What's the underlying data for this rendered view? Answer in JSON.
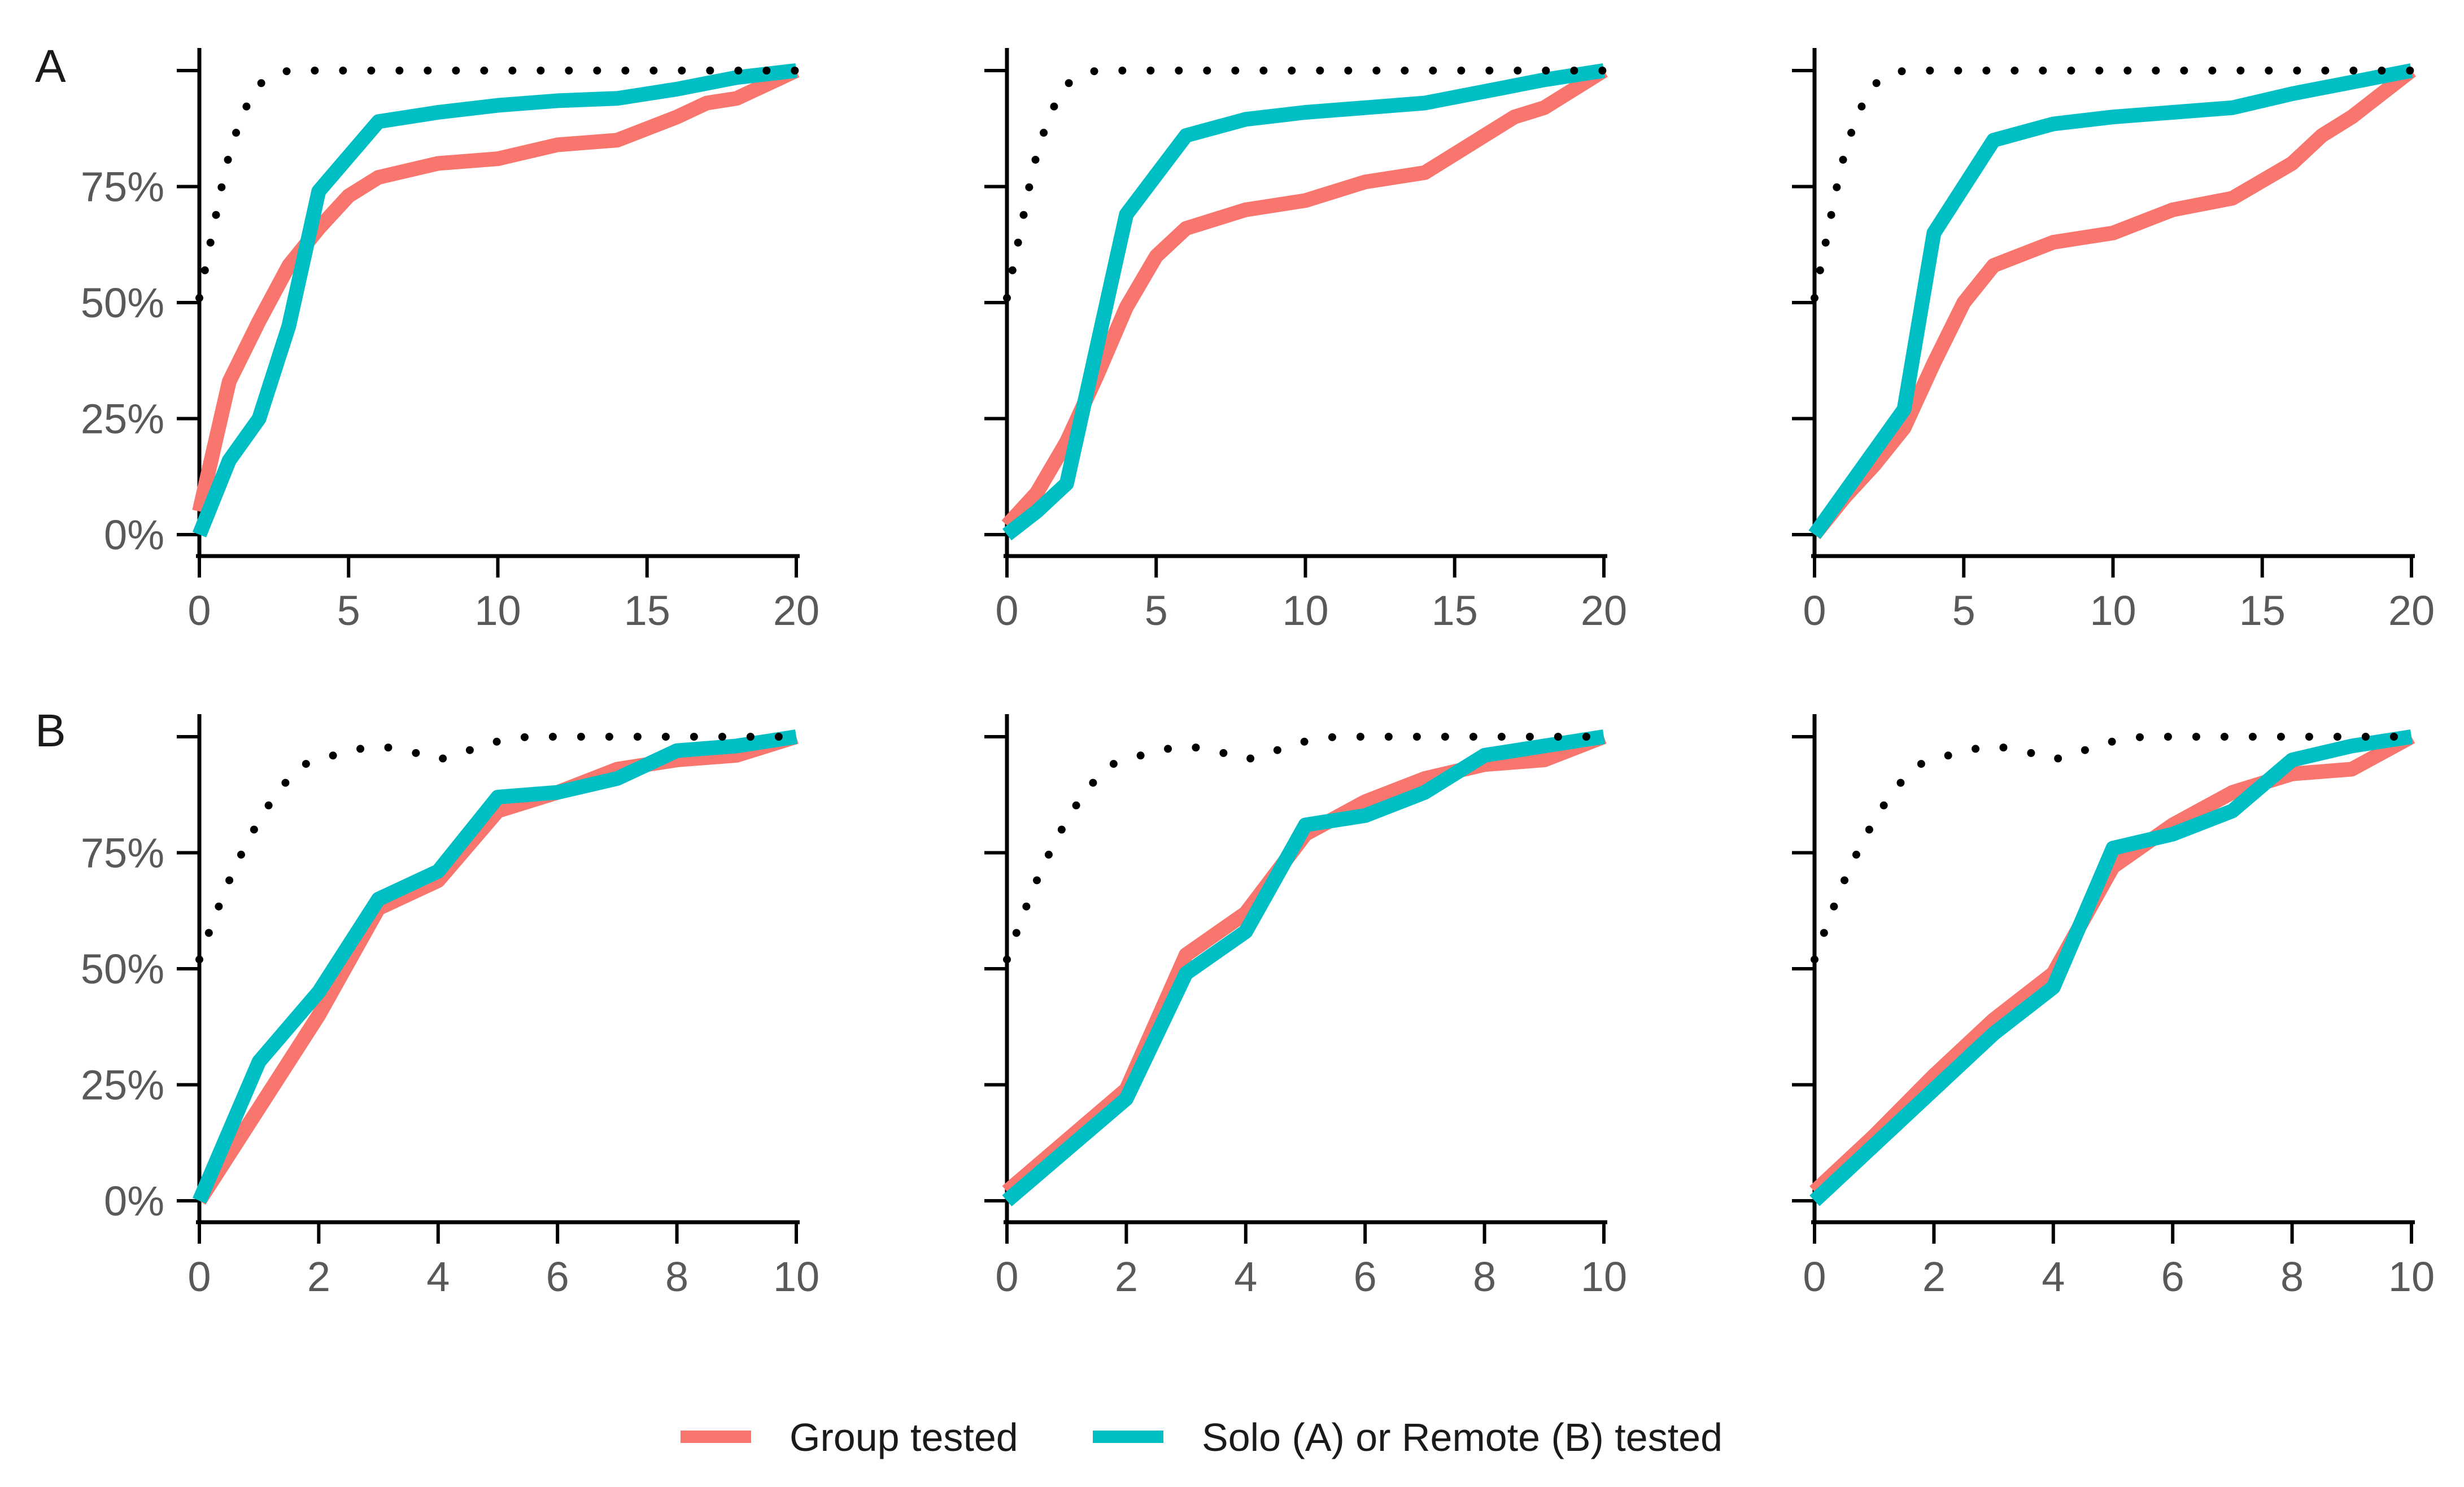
{
  "legend": {
    "items": [
      {
        "label": "Group tested",
        "color": "#F8766D"
      },
      {
        "label": "Solo (A) or Remote (B) tested",
        "color": "#00BFC4"
      }
    ]
  },
  "row_labels": [
    "A",
    "B"
  ],
  "reference_line_color": "#000000",
  "chart_data": [
    {
      "type": "line",
      "row": "A",
      "col": 1,
      "xlim": [
        0,
        20
      ],
      "ylim": [
        0,
        1
      ],
      "xticks": [
        0,
        5,
        10,
        15,
        20
      ],
      "xtick_labels": [
        "0",
        "5",
        "10",
        "15",
        "20"
      ],
      "yticks": [
        0,
        0.25,
        0.5,
        0.75,
        1.0
      ],
      "ytick_labels": [
        "0%",
        "25%",
        "50%",
        "75%",
        ""
      ],
      "series": [
        {
          "name": "Group tested",
          "color": "#F8766D",
          "x": [
            0,
            1,
            2,
            3,
            4,
            5,
            6,
            8,
            10,
            12,
            14,
            16,
            17,
            18,
            20
          ],
          "y": [
            0.05,
            0.33,
            0.46,
            0.58,
            0.66,
            0.73,
            0.77,
            0.8,
            0.81,
            0.84,
            0.85,
            0.9,
            0.93,
            0.94,
            1.0
          ]
        },
        {
          "name": "Solo (A) or Remote (B) tested",
          "color": "#00BFC4",
          "x": [
            0,
            1,
            2,
            3,
            4,
            6,
            8,
            10,
            12,
            14,
            16,
            18,
            20
          ],
          "y": [
            0.0,
            0.16,
            0.25,
            0.45,
            0.74,
            0.89,
            0.91,
            0.925,
            0.935,
            0.94,
            0.96,
            0.985,
            1.0
          ]
        },
        {
          "name": "reference",
          "style": "dotted",
          "color": "#000000",
          "x": [
            0,
            0.25,
            0.5,
            0.75,
            1,
            1.25,
            1.5,
            1.75,
            2,
            2.5,
            3,
            4,
            5,
            6,
            7,
            8,
            9,
            10,
            11,
            12,
            13,
            14,
            15,
            16,
            17,
            18,
            19,
            20
          ],
          "y": [
            0.51,
            0.59,
            0.67,
            0.75,
            0.82,
            0.87,
            0.91,
            0.95,
            0.97,
            0.99,
            1.0,
            1.0,
            1.0,
            1.0,
            1.0,
            1.0,
            1.0,
            1.0,
            1.0,
            1.0,
            1.0,
            1.0,
            1.0,
            1.0,
            1.0,
            1.0,
            1.0,
            1.0
          ]
        }
      ]
    },
    {
      "type": "line",
      "row": "A",
      "col": 2,
      "xlim": [
        0,
        20
      ],
      "ylim": [
        0,
        1
      ],
      "xticks": [
        0,
        5,
        10,
        15,
        20
      ],
      "xtick_labels": [
        "0",
        "5",
        "10",
        "15",
        "20"
      ],
      "yticks": [
        0,
        0.25,
        0.5,
        0.75,
        1.0
      ],
      "ytick_labels": [
        "",
        "",
        "",
        "",
        ""
      ],
      "series": [
        {
          "name": "Group tested",
          "color": "#F8766D",
          "x": [
            0,
            1,
            2,
            3,
            4,
            5,
            6,
            8,
            10,
            12,
            14,
            16,
            17,
            18,
            20
          ],
          "y": [
            0.02,
            0.09,
            0.2,
            0.34,
            0.49,
            0.6,
            0.66,
            0.7,
            0.72,
            0.76,
            0.78,
            0.86,
            0.9,
            0.92,
            1.0
          ]
        },
        {
          "name": "Solo (A) or Remote (B) tested",
          "color": "#00BFC4",
          "x": [
            0,
            1,
            2,
            3,
            4,
            6,
            8,
            10,
            12,
            14,
            16,
            18,
            20
          ],
          "y": [
            0.0,
            0.05,
            0.11,
            0.4,
            0.69,
            0.86,
            0.895,
            0.91,
            0.92,
            0.93,
            0.955,
            0.98,
            1.0
          ]
        },
        {
          "name": "reference",
          "style": "dotted",
          "color": "#000000",
          "x": [
            0,
            0.25,
            0.5,
            0.75,
            1,
            1.25,
            1.5,
            1.75,
            2,
            2.5,
            3,
            4,
            5,
            6,
            7,
            8,
            9,
            10,
            11,
            12,
            13,
            14,
            15,
            16,
            17,
            18,
            19,
            20
          ],
          "y": [
            0.51,
            0.59,
            0.67,
            0.75,
            0.82,
            0.87,
            0.91,
            0.95,
            0.97,
            0.99,
            1.0,
            1.0,
            1.0,
            1.0,
            1.0,
            1.0,
            1.0,
            1.0,
            1.0,
            1.0,
            1.0,
            1.0,
            1.0,
            1.0,
            1.0,
            1.0,
            1.0,
            1.0
          ]
        }
      ]
    },
    {
      "type": "line",
      "row": "A",
      "col": 3,
      "xlim": [
        0,
        20
      ],
      "ylim": [
        0,
        1
      ],
      "xticks": [
        0,
        5,
        10,
        15,
        20
      ],
      "xtick_labels": [
        "0",
        "5",
        "10",
        "15",
        "20"
      ],
      "yticks": [
        0,
        0.25,
        0.5,
        0.75,
        1.0
      ],
      "ytick_labels": [
        "",
        "",
        "",
        "",
        ""
      ],
      "series": [
        {
          "name": "Group tested",
          "color": "#F8766D",
          "x": [
            0,
            1,
            2,
            3,
            4,
            5,
            6,
            8,
            10,
            12,
            14,
            16,
            17,
            18,
            20
          ],
          "y": [
            0.0,
            0.08,
            0.15,
            0.23,
            0.37,
            0.5,
            0.58,
            0.63,
            0.65,
            0.7,
            0.725,
            0.8,
            0.86,
            0.9,
            1.0
          ]
        },
        {
          "name": "Solo (A) or Remote (B) tested",
          "color": "#00BFC4",
          "x": [
            0,
            1,
            2,
            3,
            4,
            6,
            8,
            10,
            12,
            14,
            16,
            18,
            20
          ],
          "y": [
            0.0,
            0.09,
            0.18,
            0.27,
            0.65,
            0.85,
            0.885,
            0.9,
            0.91,
            0.92,
            0.95,
            0.975,
            1.0
          ]
        },
        {
          "name": "reference",
          "style": "dotted",
          "color": "#000000",
          "x": [
            0,
            0.25,
            0.5,
            0.75,
            1,
            1.25,
            1.5,
            1.75,
            2,
            2.5,
            3,
            4,
            5,
            6,
            7,
            8,
            9,
            10,
            11,
            12,
            13,
            14,
            15,
            16,
            17,
            18,
            19,
            20
          ],
          "y": [
            0.51,
            0.59,
            0.67,
            0.75,
            0.82,
            0.87,
            0.91,
            0.95,
            0.97,
            0.99,
            1.0,
            1.0,
            1.0,
            1.0,
            1.0,
            1.0,
            1.0,
            1.0,
            1.0,
            1.0,
            1.0,
            1.0,
            1.0,
            1.0,
            1.0,
            1.0,
            1.0,
            1.0
          ]
        }
      ]
    },
    {
      "type": "line",
      "row": "B",
      "col": 1,
      "xlim": [
        0,
        10
      ],
      "ylim": [
        0,
        1
      ],
      "xticks": [
        0,
        2,
        4,
        6,
        8,
        10
      ],
      "xtick_labels": [
        "0",
        "2",
        "4",
        "6",
        "8",
        "10"
      ],
      "yticks": [
        0,
        0.25,
        0.5,
        0.75,
        1.0
      ],
      "ytick_labels": [
        "0%",
        "25%",
        "50%",
        "75%",
        ""
      ],
      "series": [
        {
          "name": "Group tested",
          "color": "#F8766D",
          "x": [
            0,
            1,
            2,
            3,
            4,
            5,
            6,
            7,
            8,
            9,
            10
          ],
          "y": [
            0.0,
            0.2,
            0.4,
            0.63,
            0.69,
            0.84,
            0.88,
            0.93,
            0.95,
            0.96,
            1.0
          ]
        },
        {
          "name": "Solo (A) or Remote (B) tested",
          "color": "#00BFC4",
          "x": [
            0,
            1,
            2,
            3,
            4,
            5,
            6,
            7,
            8,
            9,
            10
          ],
          "y": [
            0.0,
            0.3,
            0.45,
            0.65,
            0.71,
            0.87,
            0.88,
            0.91,
            0.97,
            0.98,
            1.0
          ]
        },
        {
          "name": "reference",
          "style": "dotted",
          "color": "#000000",
          "x": [
            0,
            0.25,
            0.5,
            0.75,
            1,
            1.25,
            1.5,
            1.75,
            2,
            2.5,
            3,
            3.5,
            4,
            4.5,
            5,
            5.5,
            6,
            6.5,
            7,
            7.5,
            8,
            8.5,
            9,
            9.5,
            10
          ],
          "y": [
            0.52,
            0.61,
            0.69,
            0.76,
            0.82,
            0.87,
            0.91,
            0.94,
            0.95,
            0.97,
            0.98,
            0.97,
            0.95,
            0.97,
            0.99,
            1.0,
            1.0,
            1.0,
            1.0,
            1.0,
            1.0,
            1.0,
            1.0,
            1.0,
            1.0
          ]
        }
      ]
    },
    {
      "type": "line",
      "row": "B",
      "col": 2,
      "xlim": [
        0,
        10
      ],
      "ylim": [
        0,
        1
      ],
      "xticks": [
        0,
        2,
        4,
        6,
        8,
        10
      ],
      "xtick_labels": [
        "0",
        "2",
        "4",
        "6",
        "8",
        "10"
      ],
      "yticks": [
        0,
        0.25,
        0.5,
        0.75,
        1.0
      ],
      "ytick_labels": [
        "",
        "",
        "",
        "",
        ""
      ],
      "series": [
        {
          "name": "Group tested",
          "color": "#F8766D",
          "x": [
            0,
            1,
            2,
            3,
            4,
            5,
            6,
            7,
            8,
            9,
            10
          ],
          "y": [
            0.02,
            0.13,
            0.24,
            0.53,
            0.62,
            0.79,
            0.86,
            0.91,
            0.94,
            0.95,
            1.0
          ]
        },
        {
          "name": "Solo (A) or Remote (B) tested",
          "color": "#00BFC4",
          "x": [
            0,
            1,
            2,
            3,
            4,
            5,
            6,
            7,
            8,
            9,
            10
          ],
          "y": [
            0.0,
            0.11,
            0.22,
            0.49,
            0.58,
            0.81,
            0.83,
            0.88,
            0.96,
            0.98,
            1.0
          ]
        },
        {
          "name": "reference",
          "style": "dotted",
          "color": "#000000",
          "x": [
            0,
            0.25,
            0.5,
            0.75,
            1,
            1.25,
            1.5,
            1.75,
            2,
            2.5,
            3,
            3.5,
            4,
            4.5,
            5,
            5.5,
            6,
            6.5,
            7,
            7.5,
            8,
            8.5,
            9,
            9.5,
            10
          ],
          "y": [
            0.52,
            0.61,
            0.69,
            0.76,
            0.82,
            0.87,
            0.91,
            0.94,
            0.95,
            0.97,
            0.98,
            0.97,
            0.95,
            0.97,
            0.99,
            1.0,
            1.0,
            1.0,
            1.0,
            1.0,
            1.0,
            1.0,
            1.0,
            1.0,
            1.0
          ]
        }
      ]
    },
    {
      "type": "line",
      "row": "B",
      "col": 3,
      "xlim": [
        0,
        10
      ],
      "ylim": [
        0,
        1
      ],
      "xticks": [
        0,
        2,
        4,
        6,
        8,
        10
      ],
      "xtick_labels": [
        "0",
        "2",
        "4",
        "6",
        "8",
        "10"
      ],
      "yticks": [
        0,
        0.25,
        0.5,
        0.75,
        1.0
      ],
      "ytick_labels": [
        "",
        "",
        "",
        "",
        ""
      ],
      "series": [
        {
          "name": "Group tested",
          "color": "#F8766D",
          "x": [
            0,
            1,
            2,
            3,
            4,
            5,
            6,
            7,
            8,
            9,
            10
          ],
          "y": [
            0.02,
            0.14,
            0.27,
            0.39,
            0.49,
            0.72,
            0.81,
            0.88,
            0.92,
            0.93,
            1.0
          ]
        },
        {
          "name": "Solo (A) or Remote (B) tested",
          "color": "#00BFC4",
          "x": [
            0,
            1,
            2,
            3,
            4,
            5,
            6,
            7,
            8,
            9,
            10
          ],
          "y": [
            0.0,
            0.12,
            0.24,
            0.36,
            0.46,
            0.76,
            0.79,
            0.84,
            0.95,
            0.98,
            1.0
          ]
        },
        {
          "name": "reference",
          "style": "dotted",
          "color": "#000000",
          "x": [
            0,
            0.25,
            0.5,
            0.75,
            1,
            1.25,
            1.5,
            1.75,
            2,
            2.5,
            3,
            3.5,
            4,
            4.5,
            5,
            5.5,
            6,
            6.5,
            7,
            7.5,
            8,
            8.5,
            9,
            9.5,
            10
          ],
          "y": [
            0.52,
            0.61,
            0.69,
            0.76,
            0.82,
            0.87,
            0.91,
            0.94,
            0.95,
            0.97,
            0.98,
            0.97,
            0.95,
            0.97,
            0.99,
            1.0,
            1.0,
            1.0,
            1.0,
            1.0,
            1.0,
            1.0,
            1.0,
            1.0,
            1.0
          ]
        }
      ]
    }
  ]
}
